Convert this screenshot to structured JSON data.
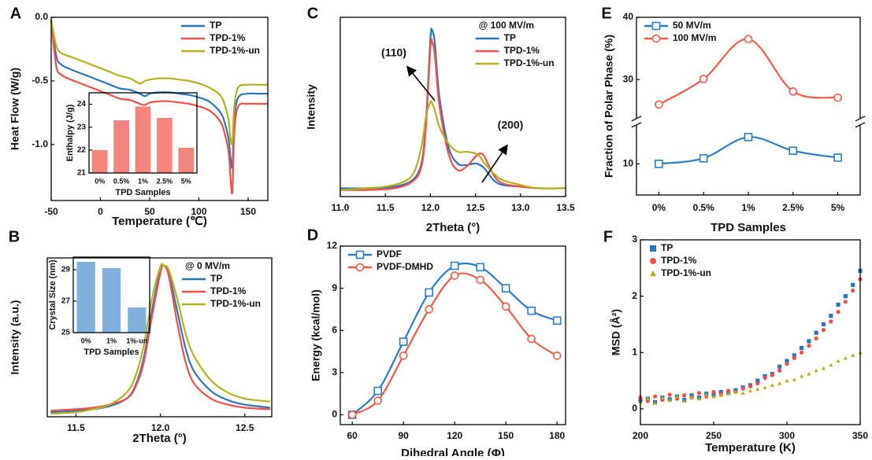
{
  "chart_data": [
    {
      "panel": "A",
      "type": "line",
      "xlabel": "Temperature (℃)",
      "ylabel": "Heat Flow (W/g)",
      "x": [
        -50,
        -45,
        -40,
        -30,
        -20,
        -10,
        0,
        10,
        20,
        30,
        40,
        45,
        50,
        60,
        70,
        80,
        90,
        100,
        110,
        120,
        125,
        130,
        132,
        134,
        136,
        140,
        150,
        160,
        170
      ],
      "series": [
        {
          "name": "TP",
          "color": "#2e75b6",
          "values": [
            -0.02,
            -0.3,
            -0.37,
            -0.41,
            -0.44,
            -0.47,
            -0.5,
            -0.53,
            -0.56,
            -0.57,
            -0.6,
            -0.62,
            -0.6,
            -0.59,
            -0.59,
            -0.6,
            -0.61,
            -0.63,
            -0.66,
            -0.73,
            -0.8,
            -0.95,
            -1.1,
            -1.17,
            -0.8,
            -0.63,
            -0.6,
            -0.6,
            -0.6
          ]
        },
        {
          "name": "TPD-1%",
          "color": "#f0504a",
          "values": [
            -0.02,
            -0.38,
            -0.45,
            -0.49,
            -0.52,
            -0.55,
            -0.58,
            -0.61,
            -0.64,
            -0.65,
            -0.68,
            -0.69,
            -0.67,
            -0.66,
            -0.66,
            -0.67,
            -0.68,
            -0.7,
            -0.73,
            -0.8,
            -0.88,
            -1.05,
            -1.25,
            -1.37,
            -0.9,
            -0.7,
            -0.68,
            -0.68,
            -0.68
          ]
        },
        {
          "name": "TPD-1%-un",
          "color": "#b5b020",
          "values": [
            -0.02,
            -0.22,
            -0.28,
            -0.31,
            -0.34,
            -0.37,
            -0.4,
            -0.43,
            -0.46,
            -0.48,
            -0.52,
            -0.5,
            -0.49,
            -0.48,
            -0.48,
            -0.49,
            -0.5,
            -0.52,
            -0.55,
            -0.6,
            -0.66,
            -0.8,
            -0.95,
            -0.98,
            -0.7,
            -0.55,
            -0.53,
            -0.53,
            -0.53
          ]
        }
      ],
      "xlim": [
        -50,
        170
      ],
      "ylim": [
        -1.44,
        0
      ],
      "xticks": [
        -50,
        0,
        50,
        100,
        150
      ],
      "yticks": [
        {
          "value": 0,
          "label": "0.0"
        },
        {
          "value": -0.5,
          "label": "-0.5"
        },
        {
          "value": -1,
          "label": "-1.0"
        }
      ],
      "legend": "upper right",
      "inset": {
        "type": "bar",
        "xlabel": "TPD Samples",
        "ylabel": "Enthalpy (J/g)",
        "categories": [
          "0%",
          "0.5%",
          "1%",
          "2.5%",
          "5%"
        ],
        "values": [
          22.0,
          23.3,
          23.9,
          23.4,
          22.1
        ],
        "color": "#f4837d",
        "ylim": [
          21,
          24.5
        ],
        "yticks": [
          21,
          22,
          23,
          24
        ]
      }
    },
    {
      "panel": "B",
      "type": "line",
      "xlabel": "2Theta (°)",
      "ylabel": "Intensity (a.u.)",
      "x": [
        11.35,
        11.5,
        11.6,
        11.7,
        11.8,
        11.85,
        11.9,
        11.95,
        12.0,
        12.02,
        12.05,
        12.1,
        12.15,
        12.2,
        12.3,
        12.4,
        12.5,
        12.65
      ],
      "series": [
        {
          "name": "TP",
          "color": "#2e75b6",
          "values": [
            0.03,
            0.04,
            0.05,
            0.07,
            0.12,
            0.2,
            0.38,
            0.7,
            0.97,
            1.0,
            0.95,
            0.7,
            0.45,
            0.3,
            0.17,
            0.11,
            0.08,
            0.06
          ]
        },
        {
          "name": "TPD-1%",
          "color": "#f0504a",
          "values": [
            0.04,
            0.05,
            0.06,
            0.08,
            0.12,
            0.19,
            0.35,
            0.66,
            0.95,
            1.0,
            0.93,
            0.62,
            0.36,
            0.22,
            0.12,
            0.08,
            0.06,
            0.05
          ]
        },
        {
          "name": "TPD-1%-un",
          "color": "#b5b020",
          "values": [
            0.02,
            0.03,
            0.05,
            0.08,
            0.16,
            0.26,
            0.46,
            0.78,
            0.99,
            1.0,
            0.97,
            0.78,
            0.55,
            0.4,
            0.24,
            0.16,
            0.12,
            0.1
          ]
        }
      ],
      "xlim": [
        11.33,
        12.66
      ],
      "ylim": [
        0,
        1.05
      ],
      "xticks": [
        11.5,
        {
          "value": 12,
          "label": "12.0"
        },
        12.5
      ],
      "legend": "upper right",
      "legend_title": "@ 0 MV/m",
      "inset": {
        "type": "bar",
        "xlabel": "TPD Samples",
        "ylabel": "Crystal Size (nm)",
        "categories": [
          "0%",
          "1%",
          "1%-un"
        ],
        "values": [
          29.5,
          29.1,
          26.6
        ],
        "color": "#7fb0dc",
        "ylim": [
          25,
          29.8
        ],
        "yticks": [
          25,
          27,
          29
        ]
      }
    },
    {
      "panel": "C",
      "type": "line",
      "xlabel": "2Theta (°)",
      "ylabel": "Intensity",
      "x": [
        11.0,
        11.3,
        11.6,
        11.8,
        11.9,
        11.95,
        12.0,
        12.02,
        12.05,
        12.1,
        12.2,
        12.3,
        12.4,
        12.5,
        12.55,
        12.6,
        12.7,
        12.8,
        13.0,
        13.2,
        13.5
      ],
      "series": [
        {
          "name": "TP",
          "color": "#2e75b6",
          "values": [
            0.05,
            0.05,
            0.06,
            0.1,
            0.2,
            0.45,
            0.95,
            1.0,
            0.92,
            0.6,
            0.3,
            0.2,
            0.19,
            0.2,
            0.19,
            0.17,
            0.1,
            0.07,
            0.06,
            0.05,
            0.05
          ]
        },
        {
          "name": "TPD-1%",
          "color": "#f0504a",
          "values": [
            0.04,
            0.04,
            0.05,
            0.09,
            0.18,
            0.42,
            0.9,
            0.93,
            0.85,
            0.55,
            0.26,
            0.16,
            0.18,
            0.24,
            0.26,
            0.24,
            0.13,
            0.08,
            0.06,
            0.05,
            0.05
          ]
        },
        {
          "name": "TPD-1%-un",
          "color": "#b5b020",
          "values": [
            0.04,
            0.05,
            0.07,
            0.13,
            0.3,
            0.48,
            0.57,
            0.56,
            0.52,
            0.42,
            0.32,
            0.27,
            0.27,
            0.26,
            0.24,
            0.2,
            0.14,
            0.1,
            0.07,
            0.05,
            0.05
          ]
        }
      ],
      "xlim": [
        11,
        13.5
      ],
      "ylim": [
        0,
        1.08
      ],
      "xticks": [
        {
          "value": 11,
          "label": "11.0"
        },
        11.5,
        {
          "value": 12,
          "label": "12.0"
        },
        12.5,
        {
          "value": 13,
          "label": "13.0"
        },
        13.5
      ],
      "legend": "upper right",
      "legend_title": "@ 100 MV/m",
      "annotations": [
        "(110)",
        "(200)"
      ]
    },
    {
      "panel": "D",
      "type": "line",
      "xlabel": "Dihedral Angle (Φ)",
      "ylabel": "Energy (kcal/mol)",
      "x": [
        60,
        75,
        90,
        105,
        120,
        135,
        150,
        165,
        180
      ],
      "series": [
        {
          "name": "PVDF",
          "color": "#2e7bbf",
          "marker": "square",
          "values": [
            0,
            1.7,
            5.2,
            8.7,
            10.6,
            10.5,
            9.0,
            7.4,
            6.7
          ]
        },
        {
          "name": "PVDF-DMHD",
          "color": "#f25a4a",
          "marker": "circle",
          "values": [
            0,
            1.0,
            4.2,
            7.5,
            9.9,
            9.6,
            7.7,
            5.4,
            4.2
          ]
        }
      ],
      "xlim": [
        53,
        185
      ],
      "ylim": [
        -0.7,
        12
      ],
      "xticks": [
        60,
        90,
        120,
        150,
        180
      ],
      "yticks": [
        0,
        3,
        6,
        9,
        12
      ],
      "legend": "upper left"
    },
    {
      "panel": "E",
      "type": "line",
      "xlabel": "TPD Samples",
      "ylabel": "Fraction of Polar Phase (%)",
      "categories": [
        "0%",
        "0.5%",
        "1%",
        "2.5%",
        "5%"
      ],
      "series": [
        {
          "name": "50 MV/m",
          "color": "#2e7bbf",
          "marker": "square",
          "values": [
            10,
            10.9,
            14.3,
            12.1,
            11.0
          ]
        },
        {
          "name": "100 MV/m",
          "color": "#f25a4a",
          "marker": "circle",
          "values": [
            26.0,
            30.1,
            36.5,
            28.1,
            27.1
          ]
        }
      ],
      "ylim": [
        5,
        40
      ],
      "ybreak": [
        16,
        24
      ],
      "yticks": [
        10,
        30,
        40
      ],
      "legend": "upper left"
    },
    {
      "panel": "F",
      "type": "scatter",
      "xlabel": "Temperature (K)",
      "ylabel": "MSD (Å²)",
      "x": [
        200,
        205,
        210,
        215,
        220,
        225,
        230,
        235,
        240,
        245,
        250,
        255,
        260,
        265,
        270,
        275,
        280,
        285,
        290,
        295,
        300,
        305,
        310,
        315,
        320,
        325,
        330,
        335,
        340,
        345,
        350
      ],
      "series": [
        {
          "name": "TP",
          "color": "#2e75b6",
          "marker": "square",
          "values": [
            0.15,
            0.18,
            0.12,
            0.2,
            0.17,
            0.22,
            0.16,
            0.24,
            0.2,
            0.27,
            0.25,
            0.3,
            0.28,
            0.33,
            0.38,
            0.42,
            0.5,
            0.58,
            0.62,
            0.75,
            0.85,
            0.95,
            1.08,
            1.2,
            1.35,
            1.5,
            1.65,
            1.85,
            2.0,
            2.2,
            2.45
          ]
        },
        {
          "name": "TPD-1%",
          "color": "#f0504a",
          "marker": "circle",
          "values": [
            0.2,
            0.14,
            0.22,
            0.16,
            0.25,
            0.18,
            0.24,
            0.2,
            0.28,
            0.22,
            0.3,
            0.26,
            0.32,
            0.3,
            0.36,
            0.4,
            0.45,
            0.55,
            0.6,
            0.68,
            0.8,
            0.9,
            1.0,
            1.12,
            1.25,
            1.4,
            1.55,
            1.72,
            1.9,
            2.1,
            2.3
          ]
        },
        {
          "name": "TPD-1%-un",
          "color": "#b5b020",
          "marker": "triangle",
          "values": [
            0.12,
            0.18,
            0.1,
            0.2,
            0.15,
            0.22,
            0.14,
            0.2,
            0.18,
            0.25,
            0.22,
            0.24,
            0.27,
            0.3,
            0.28,
            0.32,
            0.35,
            0.38,
            0.42,
            0.45,
            0.5,
            0.52,
            0.58,
            0.62,
            0.68,
            0.72,
            0.78,
            0.85,
            0.9,
            0.95,
            1.0
          ]
        }
      ],
      "xlim": [
        200,
        350
      ],
      "ylim": [
        -0.28,
        3
      ],
      "xticks": [
        200,
        250,
        300,
        350
      ],
      "yticks": [
        0,
        1,
        2,
        3
      ],
      "legend": "upper left"
    }
  ]
}
